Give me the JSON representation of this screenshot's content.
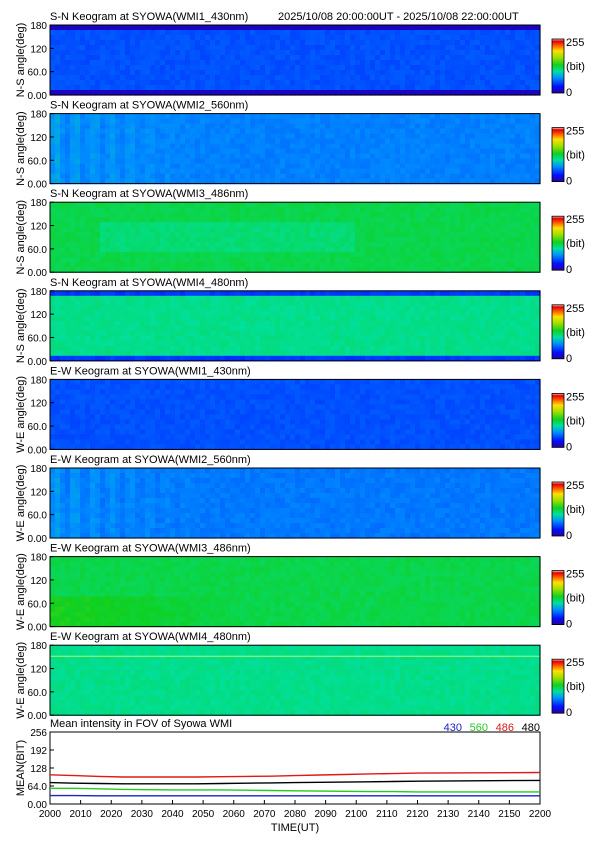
{
  "header": {
    "time_range": "2025/10/08 20:00:00UT - 2025/10/08 22:00:00UT"
  },
  "colorbar": {
    "max_label": "255",
    "unit_label": "(bit)",
    "min_label": "0"
  },
  "colors": {
    "430": "#1a22c8",
    "560": "#22cc22",
    "486": "#e01818",
    "480": "#000000"
  },
  "chart_data": [
    {
      "type": "heatmap",
      "title": "S-N Keogram at SYOWA(WMI1_430nm)",
      "ylabel": "N-S angle(deg)",
      "yticks": [
        "0.00",
        "60.0",
        "120",
        "180"
      ],
      "ylim": [
        0,
        180
      ],
      "zlim": [
        0,
        255
      ],
      "colorscale": "rainbow",
      "mean_level": 0.2,
      "pattern": "uniform dim, dark rows at top and bottom edges"
    },
    {
      "type": "heatmap",
      "title": "S-N Keogram at SYOWA(WMI2_560nm)",
      "ylabel": "N-S angle(deg)",
      "yticks": [
        "0.00",
        "60.0",
        "120",
        "180"
      ],
      "ylim": [
        0,
        180
      ],
      "zlim": [
        0,
        255
      ],
      "colorscale": "rainbow",
      "mean_level": 0.26,
      "pattern": "brighter streaks 2000-2045 UT"
    },
    {
      "type": "heatmap",
      "title": "S-N Keogram at SYOWA(WMI3_486nm)",
      "ylabel": "N-S angle(deg)",
      "yticks": [
        "0.00",
        "60.0",
        "120",
        "180"
      ],
      "ylim": [
        0,
        180
      ],
      "zlim": [
        0,
        255
      ],
      "colorscale": "rainbow",
      "mean_level": 0.48,
      "pattern": "fairly uniform, slightly darker band mid-latitudes 2010-2110 UT"
    },
    {
      "type": "heatmap",
      "title": "S-N Keogram at SYOWA(WMI4_480nm)",
      "ylabel": "N-S angle(deg)",
      "yticks": [
        "0.00",
        "60.0",
        "120",
        "180"
      ],
      "ylim": [
        0,
        180
      ],
      "zlim": [
        0,
        255
      ],
      "colorscale": "rainbow",
      "mean_level": 0.42,
      "pattern": "uniform, dark rows at top and bottom edges"
    },
    {
      "type": "heatmap",
      "title": "E-W Keogram at SYOWA(WMI1_430nm)",
      "ylabel": "W-E angle(deg)",
      "yticks": [
        "0.00",
        "60.0",
        "120",
        "180"
      ],
      "ylim": [
        0,
        180
      ],
      "zlim": [
        0,
        255
      ],
      "colorscale": "rainbow",
      "mean_level": 0.2,
      "pattern": "uniform dim"
    },
    {
      "type": "heatmap",
      "title": "E-W Keogram at SYOWA(WMI2_560nm)",
      "ylabel": "W-E angle(deg)",
      "yticks": [
        "0.00",
        "60.0",
        "120",
        "180"
      ],
      "ylim": [
        0,
        180
      ],
      "zlim": [
        0,
        255
      ],
      "colorscale": "rainbow",
      "mean_level": 0.25,
      "pattern": "brighter streaks 2000-2045 UT"
    },
    {
      "type": "heatmap",
      "title": "E-W Keogram at SYOWA(WMI3_486nm)",
      "ylabel": "W-E angle(deg)",
      "yticks": [
        "0.00",
        "60.0",
        "120",
        "180"
      ],
      "ylim": [
        0,
        180
      ],
      "zlim": [
        0,
        255
      ],
      "colorscale": "rainbow",
      "mean_level": 0.48,
      "pattern": "slightly brighter at low angles early in the interval"
    },
    {
      "type": "heatmap",
      "title": "E-W Keogram at SYOWA(WMI4_480nm)",
      "ylabel": "W-E angle(deg)",
      "yticks": [
        "0.00",
        "60.0",
        "120",
        "180"
      ],
      "ylim": [
        0,
        180
      ],
      "zlim": [
        0,
        255
      ],
      "colorscale": "rainbow",
      "mean_level": 0.42,
      "pattern": "uniform, thin bright line near top"
    },
    {
      "type": "line",
      "title": "Mean intensity in FOV of Syowa WMI",
      "xlabel": "TIME(UT)",
      "ylabel": "MEAN(BIT)",
      "xlim": [
        2000,
        2200
      ],
      "ylim": [
        0,
        256
      ],
      "xticks": [
        "2000",
        "2010",
        "2020",
        "2030",
        "2040",
        "2050",
        "2060",
        "2070",
        "2080",
        "2090",
        "2100",
        "2110",
        "2120",
        "2130",
        "2140",
        "2150",
        "2200"
      ],
      "yticks": [
        "0.00",
        "64.0",
        "128",
        "192",
        "256"
      ],
      "legend_position": "top-right",
      "x": [
        2000,
        2010,
        2020,
        2030,
        2040,
        2050,
        2060,
        2070,
        2080,
        2090,
        2100,
        2110,
        2120,
        2130,
        2140,
        2150,
        2200
      ],
      "series": [
        {
          "name": "430",
          "color": "#1a22c8",
          "values": [
            30,
            30,
            29,
            29,
            29,
            29,
            29,
            29,
            29,
            29,
            29,
            29,
            29,
            29,
            29,
            29,
            29
          ]
        },
        {
          "name": "560",
          "color": "#22cc22",
          "values": [
            56,
            56,
            54,
            52,
            51,
            50,
            50,
            50,
            49,
            48,
            47,
            46,
            45,
            44,
            44,
            43,
            43
          ]
        },
        {
          "name": "486",
          "color": "#e01818",
          "values": [
            104,
            101,
            98,
            96,
            96,
            96,
            96,
            97,
            98,
            99,
            101,
            103,
            105,
            107,
            108,
            110,
            112
          ]
        },
        {
          "name": "480",
          "color": "#000000",
          "values": [
            76,
            74,
            73,
            72,
            72,
            72,
            72,
            73,
            74,
            75,
            76,
            77,
            78,
            79,
            80,
            81,
            84
          ]
        }
      ]
    }
  ]
}
